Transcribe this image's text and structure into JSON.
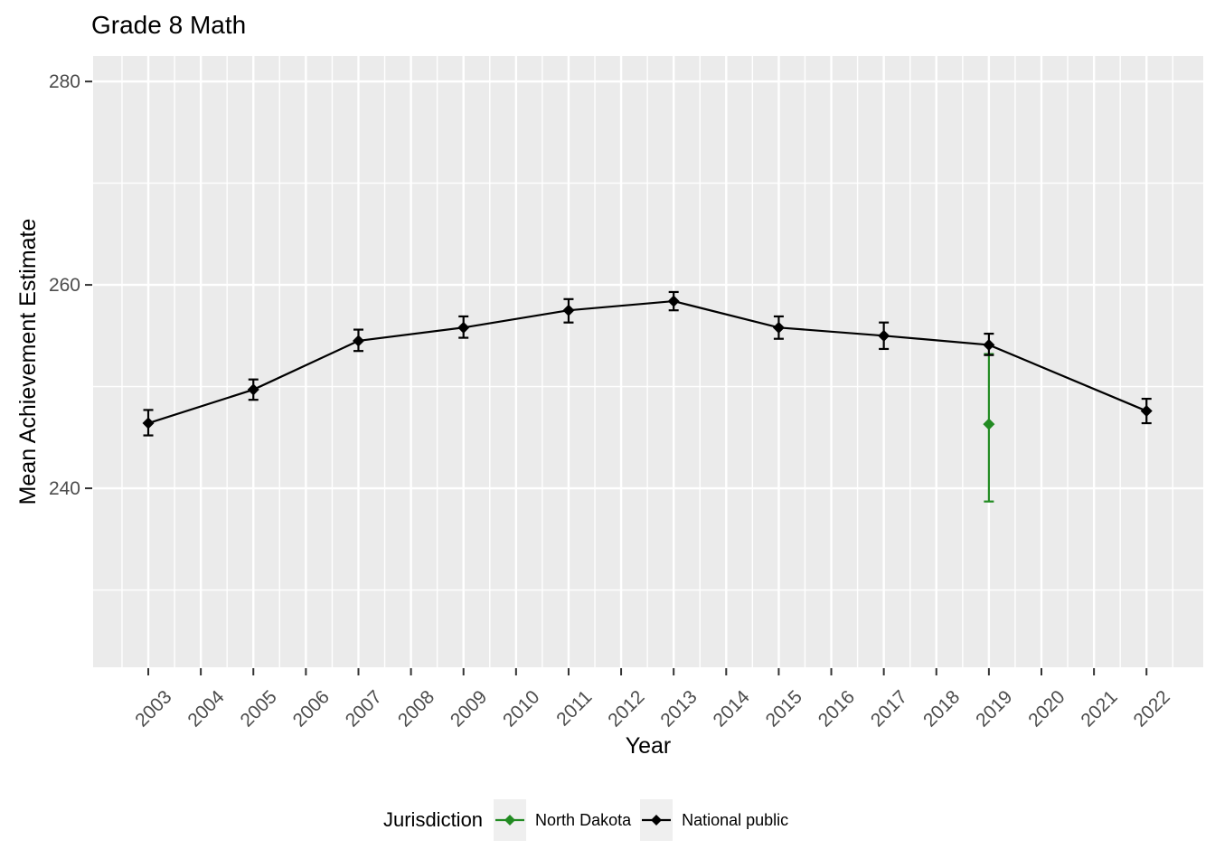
{
  "figure": {
    "title": "Grade 8 Math",
    "colors": {
      "panel_background": "#EBEBEB",
      "grid": "#FFFFFF",
      "tick_mark": "#333333",
      "tick_label": "#4D4D4D",
      "text": "#000000",
      "legend_key_background": "#EFEFEF",
      "north_dakota_green": "#228B22",
      "national_public_black": "#000000"
    }
  },
  "chart_data": {
    "type": "line",
    "title": "Grade 8 Math",
    "xlabel": "Year",
    "ylabel": "Mean Achievement Estimate",
    "legend_title": "Jurisdiction",
    "legend_position": "bottom",
    "grid": true,
    "xlim": [
      2001.95,
      2023.08
    ],
    "ylim": [
      222.4,
      282.5
    ],
    "x_ticks": [
      2003,
      2004,
      2005,
      2006,
      2007,
      2008,
      2009,
      2010,
      2011,
      2012,
      2013,
      2014,
      2015,
      2016,
      2017,
      2018,
      2019,
      2020,
      2021,
      2022
    ],
    "y_ticks": [
      240,
      260,
      280
    ],
    "x_tick_label_angle_deg": 45,
    "marker": "diamond",
    "error_bars": "95% confidence interval",
    "series": [
      {
        "name": "North Dakota",
        "color": "#228B22",
        "points": [
          {
            "year": 2019,
            "value": 246.3,
            "ci_low": 238.7,
            "ci_high": 253.2
          }
        ]
      },
      {
        "name": "National public",
        "color": "#000000",
        "points": [
          {
            "year": 2003,
            "value": 246.4,
            "ci_low": 245.2,
            "ci_high": 247.7
          },
          {
            "year": 2005,
            "value": 249.7,
            "ci_low": 248.7,
            "ci_high": 250.7
          },
          {
            "year": 2007,
            "value": 254.5,
            "ci_low": 253.5,
            "ci_high": 255.6
          },
          {
            "year": 2009,
            "value": 255.8,
            "ci_low": 254.8,
            "ci_high": 256.9
          },
          {
            "year": 2011,
            "value": 257.5,
            "ci_low": 256.3,
            "ci_high": 258.6
          },
          {
            "year": 2013,
            "value": 258.4,
            "ci_low": 257.5,
            "ci_high": 259.3
          },
          {
            "year": 2015,
            "value": 255.8,
            "ci_low": 254.7,
            "ci_high": 256.9
          },
          {
            "year": 2017,
            "value": 255.0,
            "ci_low": 253.7,
            "ci_high": 256.3
          },
          {
            "year": 2019,
            "value": 254.1,
            "ci_low": 253.1,
            "ci_high": 255.2
          },
          {
            "year": 2022,
            "value": 247.6,
            "ci_low": 246.4,
            "ci_high": 248.8
          }
        ]
      }
    ]
  }
}
